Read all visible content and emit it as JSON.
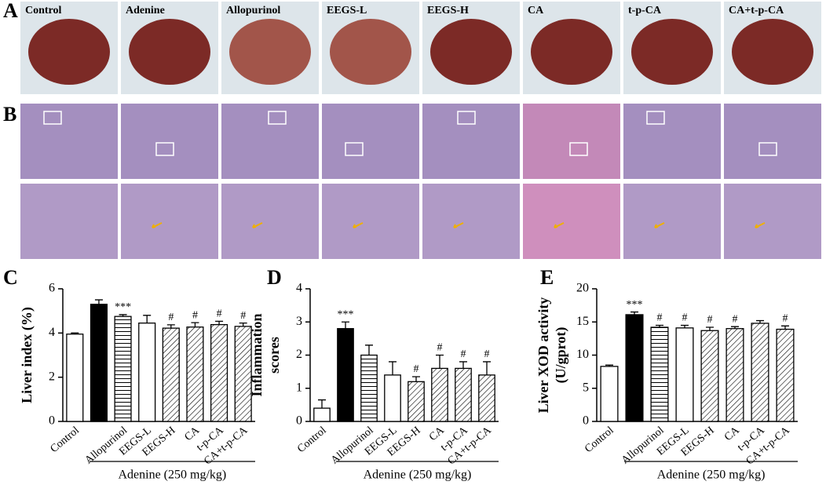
{
  "photo_panels": {
    "panel_a_label": "A",
    "panel_b_label": "B",
    "groups": [
      "Control",
      "Adenine",
      "Allopurinol",
      "EEGS-L",
      "EEGS-H",
      "CA",
      "t-p-CA",
      "CA+t-p-CA"
    ]
  },
  "chart_data": [
    {
      "type": "bar",
      "panel_label": "C",
      "ylabel": [
        "Liver index  (%)"
      ],
      "categories": [
        "Control",
        null,
        "Allopurinol",
        "EEGS-L",
        "EEGS-H",
        "CA",
        "t-p-CA",
        "CA+t-p-CA"
      ],
      "values": [
        3.95,
        5.3,
        4.75,
        4.45,
        4.22,
        4.27,
        4.38,
        4.3
      ],
      "errors": [
        0.05,
        0.2,
        0.08,
        0.35,
        0.15,
        0.2,
        0.15,
        0.15
      ],
      "annotations": [
        null,
        null,
        "***",
        null,
        "#",
        "#",
        "#",
        "#"
      ],
      "fills": [
        "white",
        "black",
        "hlines",
        "white",
        "diag",
        "diag",
        "diag",
        "diag"
      ],
      "ylim": [
        0,
        6
      ],
      "yticks": [
        0,
        2,
        4,
        6
      ],
      "group_label": "Adenine (250 mg/kg)"
    },
    {
      "type": "bar",
      "panel_label": "D",
      "ylabel": [
        "Inflammation",
        "scores"
      ],
      "categories": [
        "Control",
        null,
        "Allopurinol",
        "EEGS-L",
        "EEGS-H",
        "CA",
        "t-p-CA",
        "CA+t-p-CA"
      ],
      "values": [
        0.4,
        2.8,
        2.0,
        1.4,
        1.2,
        1.6,
        1.6,
        1.4
      ],
      "errors": [
        0.25,
        0.2,
        0.3,
        0.4,
        0.15,
        0.4,
        0.2,
        0.4
      ],
      "annotations": [
        null,
        "***",
        null,
        null,
        "#",
        "#",
        "#",
        "#"
      ],
      "fills": [
        "white",
        "black",
        "hlines",
        "white",
        "diag",
        "diag",
        "diag",
        "diag"
      ],
      "ylim": [
        0,
        4
      ],
      "yticks": [
        0,
        1,
        2,
        3,
        4
      ],
      "group_label": "Adenine (250 mg/kg)"
    },
    {
      "type": "bar",
      "panel_label": "E",
      "ylabel": [
        "Liver XOD activity",
        "(U/gprot)"
      ],
      "categories": [
        "Control",
        null,
        "Allopurinol",
        "EEGS-L",
        "EEGS-H",
        "CA",
        "t-p-CA",
        "CA+t-p-CA"
      ],
      "values": [
        8.3,
        16.1,
        14.2,
        14.1,
        13.7,
        14.0,
        14.8,
        13.9
      ],
      "errors": [
        0.2,
        0.4,
        0.3,
        0.4,
        0.5,
        0.3,
        0.4,
        0.5
      ],
      "annotations": [
        null,
        "***",
        "#",
        "#",
        "#",
        "#",
        null,
        "#"
      ],
      "fills": [
        "white",
        "black",
        "hlines",
        "white",
        "diag",
        "diag",
        "diag",
        "diag"
      ],
      "ylim": [
        0,
        20
      ],
      "yticks": [
        0,
        5,
        10,
        15,
        20
      ],
      "group_label": "Adenine (250 mg/kg)"
    }
  ]
}
